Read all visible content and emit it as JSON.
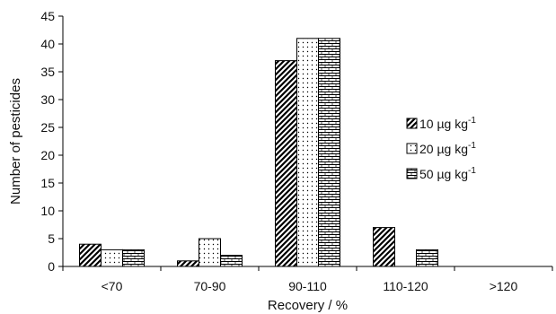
{
  "chart_data": {
    "type": "bar",
    "xlabel": "Recovery / %",
    "ylabel": "Number of pesticides",
    "categories": [
      "<70",
      "70-90",
      "90-110",
      "110-120",
      ">120"
    ],
    "ylim": [
      0,
      45
    ],
    "yticks": [
      0,
      5,
      10,
      15,
      20,
      25,
      30,
      35,
      40,
      45
    ],
    "grid": false,
    "legend_position": "right",
    "series": [
      {
        "name": "10 µg kg",
        "name_sup": "-1",
        "pattern": "diagonal-hatch",
        "values": [
          4,
          1,
          37,
          7,
          0
        ]
      },
      {
        "name": "20 µg kg",
        "name_sup": "-1",
        "pattern": "dots",
        "values": [
          3,
          5,
          41,
          0,
          0
        ]
      },
      {
        "name": "50 µg kg",
        "name_sup": "-1",
        "pattern": "brick",
        "values": [
          3,
          2,
          41,
          3,
          0
        ]
      }
    ]
  }
}
